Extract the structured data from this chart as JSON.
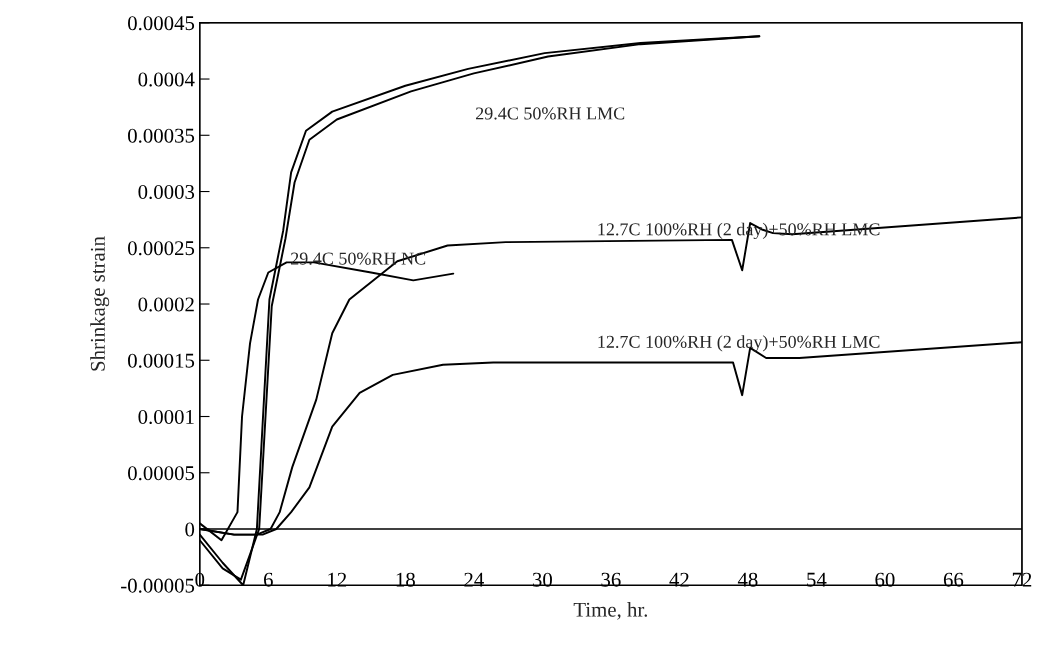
{
  "chart_data": {
    "type": "line",
    "xlabel": "Time, hr.",
    "ylabel": "Shrinkage strain",
    "xlim": [
      0,
      72
    ],
    "xticks": [
      0,
      6,
      12,
      18,
      24,
      30,
      36,
      42,
      48,
      54,
      60,
      66,
      72
    ],
    "ylim": [
      -5e-05,
      0.00045
    ],
    "yticks": [
      {
        "value": -5e-05,
        "label": "-0.00005"
      },
      {
        "value": 0,
        "label": "0"
      },
      {
        "value": 5e-05,
        "label": "0.00005"
      },
      {
        "value": 0.0001,
        "label": "0.0001"
      },
      {
        "value": 0.00015,
        "label": "0.00015"
      },
      {
        "value": 0.0002,
        "label": "0.0002"
      },
      {
        "value": 0.00025,
        "label": "0.00025"
      },
      {
        "value": 0.0003,
        "label": "0.0003"
      },
      {
        "value": 0.00035,
        "label": "0.00035"
      },
      {
        "value": 0.0004,
        "label": "0.0004"
      },
      {
        "value": 0.00045,
        "label": "0.00045"
      }
    ],
    "grid": false,
    "marker": "none",
    "line_style": "solid",
    "ref_lines": [
      {
        "axis": "y",
        "value": 0,
        "color": "#000000"
      }
    ],
    "series": [
      {
        "color": "#000000",
        "x": [
          0,
          2,
          3.8,
          5.0,
          6.1,
          7.3,
          8.0,
          9.3,
          11.6,
          18.0,
          23.5,
          30.2,
          38.6,
          49.0
        ],
        "values": [
          -5e-06,
          -3e-05,
          -5e-05,
          0,
          0.000204,
          0.000265,
          0.000317,
          0.000354,
          0.000371,
          0.000394,
          0.000409,
          0.000423,
          0.000432,
          0.000438
        ]
      },
      {
        "color": "#000000",
        "x": [
          0,
          2,
          3.6,
          5.2,
          6.3,
          7.5,
          8.3,
          9.6,
          12.0,
          18.5,
          24.0,
          30.5,
          38.6,
          49.0
        ],
        "values": [
          -1e-05,
          -3.5e-05,
          -4.5e-05,
          0,
          0.000198,
          0.000258,
          0.000308,
          0.000346,
          0.000364,
          0.000389,
          0.000405,
          0.00042,
          0.000431,
          0.000438
        ]
      },
      {
        "color": "#000000",
        "x": [
          0,
          1.9,
          3.3,
          3.7,
          4.4,
          5.1,
          6.0,
          7.6,
          10.0,
          15.0,
          18.7,
          22.2
        ],
        "values": [
          5e-06,
          -1e-05,
          1.5e-05,
          0.0001,
          0.000165,
          0.000204,
          0.000228,
          0.000237,
          0.000237,
          0.000228,
          0.000221,
          0.000227
        ]
      },
      {
        "color": "#000000",
        "x": [
          0,
          3,
          5,
          6.2,
          7,
          8.1,
          10.2,
          11.6,
          13.1,
          17.3,
          21.7,
          26.8,
          46.6,
          47.5,
          48.2,
          49.3,
          50.2,
          51.9,
          72
        ],
        "values": [
          0,
          -5e-06,
          -5e-06,
          0,
          1.5e-05,
          5.5e-05,
          0.000115,
          0.000174,
          0.000204,
          0.000238,
          0.000252,
          0.000255,
          0.000257,
          0.00023,
          0.000272,
          0.000266,
          0.000263,
          0.000262,
          0.000277
        ]
      },
      {
        "color": "#000000",
        "x": [
          0,
          3,
          5.5,
          6.7,
          8,
          9.6,
          11.6,
          14.0,
          16.9,
          21.3,
          25.7,
          46.7,
          47.5,
          48.2,
          49.6,
          52.5,
          72
        ],
        "values": [
          0,
          -5e-06,
          -5e-06,
          0,
          1.5e-05,
          3.7e-05,
          9.1e-05,
          0.000121,
          0.000137,
          0.000146,
          0.000148,
          0.000148,
          0.000119,
          0.000161,
          0.000152,
          0.000152,
          0.000166
        ]
      }
    ],
    "annotations": [
      "29.4C 50%RH LMC",
      "29.4C 50%RH NC",
      "12.7C 100%RH (2 day)+50%RH LMC",
      "12.7C 100%RH (2 day)+50%RH LMC"
    ]
  }
}
